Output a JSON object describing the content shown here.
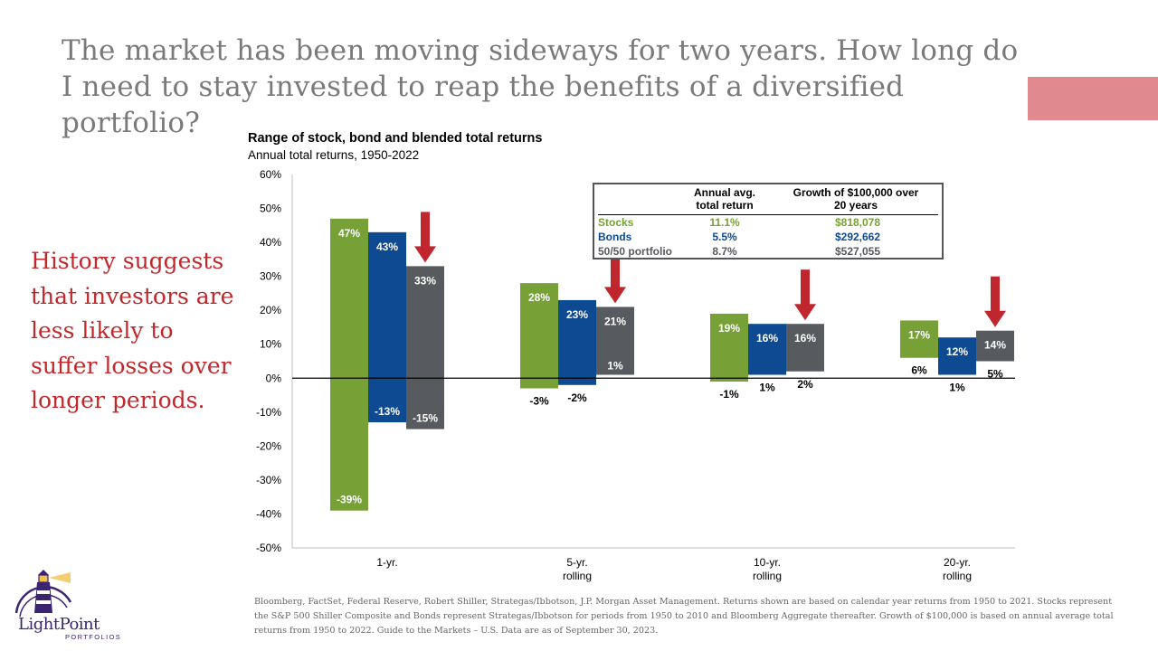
{
  "title": "The market has been moving sideways for two years.  How long do I need to stay invested to reap the benefits of a diversified portfolio?",
  "side_text": "History suggests that investors are less likely to suffer losses over longer periods.",
  "footnote": "Bloomberg, FactSet, Federal Reserve, Robert Shiller, Strategas/Ibbotson, J.P. Morgan Asset Management.  Returns shown are based on calendar year returns from 1950 to 2021. Stocks represent the S&P 500 Shiller Composite and Bonds represent Strategas/Ibbotson for periods from 1950 to 2010 and Bloomberg Aggregate thereafter. Growth of $100,000 is based on annual average total returns from 1950 to 2022. Guide to the Markets – U.S. Data are as of September 30, 2023.",
  "logo": {
    "name_light": "Light",
    "name_point": "Point",
    "sub": "PORTFOLIOS"
  },
  "colors": {
    "stocks": "#77a136",
    "bonds": "#0d4a92",
    "blend": "#575a5e",
    "arrow": "#c0262d",
    "accent_bar": "#e0898f"
  },
  "table": {
    "headers": {
      "ret_1": "Annual avg.",
      "ret_2": "total return",
      "grow_1": "Growth of $100,000 over",
      "grow_2": "20 years"
    },
    "rows": [
      {
        "name": "Stocks",
        "ret": "11.1%",
        "growth": "$818,078",
        "color": "#77a136"
      },
      {
        "name": "Bonds",
        "ret": "5.5%",
        "growth": "$292,662",
        "color": "#0d4a92"
      },
      {
        "name": "50/50 portfolio",
        "ret": "8.7%",
        "growth": "$527,055",
        "color": "#575a5e"
      }
    ]
  },
  "chart_data": {
    "type": "bar",
    "title": "Range of stock, bond and blended total returns",
    "subtitle": "Annual total returns, 1950-2022",
    "ylim": [
      -50,
      60
    ],
    "yticks": [
      "60%",
      "50%",
      "40%",
      "30%",
      "20%",
      "10%",
      "0%",
      "-10%",
      "-20%",
      "-30%",
      "-40%",
      "-50%"
    ],
    "ytick_values": [
      60,
      50,
      40,
      30,
      20,
      10,
      0,
      -10,
      -20,
      -30,
      -40,
      -50
    ],
    "categories": [
      {
        "line1": "1-yr.",
        "line2": ""
      },
      {
        "line1": "5-yr.",
        "line2": "rolling"
      },
      {
        "line1": "10-yr.",
        "line2": "rolling"
      },
      {
        "line1": "20-yr.",
        "line2": "rolling"
      }
    ],
    "series_colors": [
      "#77a136",
      "#0d4a92",
      "#575a5e"
    ],
    "groups": [
      {
        "bars": [
          {
            "max": 47,
            "min": -39,
            "max_label": "47%",
            "min_label": "-39%"
          },
          {
            "max": 43,
            "min": -13,
            "max_label": "43%",
            "min_label": "-13%"
          },
          {
            "max": 33,
            "min": -15,
            "max_label": "33%",
            "min_label": "-15%"
          }
        ]
      },
      {
        "bars": [
          {
            "max": 28,
            "min": -3,
            "max_label": "28%",
            "min_label": "-3%"
          },
          {
            "max": 23,
            "min": -2,
            "max_label": "23%",
            "min_label": "-2%"
          },
          {
            "max": 21,
            "min": 1,
            "max_label": "21%",
            "min_label": "1%"
          }
        ]
      },
      {
        "bars": [
          {
            "max": 19,
            "min": -1,
            "max_label": "19%",
            "min_label": "-1%"
          },
          {
            "max": 16,
            "min": 1,
            "max_label": "16%",
            "min_label": "1%"
          },
          {
            "max": 16,
            "min": 2,
            "max_label": "16%",
            "min_label": "2%"
          }
        ]
      },
      {
        "bars": [
          {
            "max": 17,
            "min": 6,
            "max_label": "17%",
            "min_label": "6%"
          },
          {
            "max": 12,
            "min": 1,
            "max_label": "12%",
            "min_label": "1%"
          },
          {
            "max": 14,
            "min": 5,
            "max_label": "14%",
            "min_label": "5%"
          }
        ]
      }
    ]
  }
}
